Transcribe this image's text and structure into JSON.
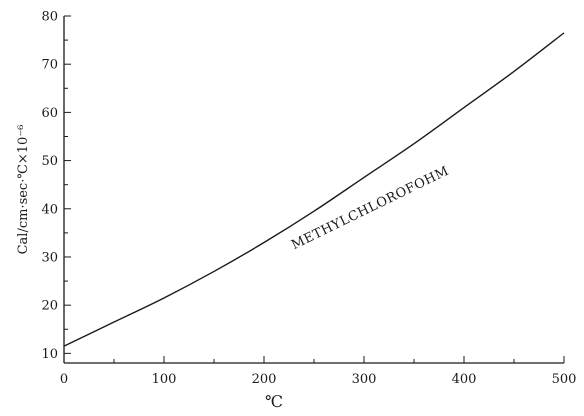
{
  "chart_data": {
    "type": "line",
    "title": "",
    "xlabel": "℃",
    "ylabel": "Cal/cm·sec·℃×10⁻⁶",
    "xlim": [
      0,
      500
    ],
    "ylim": [
      8,
      80
    ],
    "x_ticks": [
      0,
      100,
      200,
      300,
      400,
      500
    ],
    "y_ticks": [
      10,
      20,
      30,
      40,
      50,
      60,
      70,
      80
    ],
    "grid": false,
    "series": [
      {
        "name": "METHYLCHLOROFOHM",
        "x": [
          0,
          50,
          100,
          150,
          200,
          250,
          300,
          350,
          400,
          450,
          500
        ],
        "y": [
          11.5,
          16.5,
          21.5,
          27.0,
          33.0,
          39.5,
          46.5,
          53.5,
          61.0,
          68.5,
          76.5
        ]
      }
    ],
    "annotations": [
      {
        "text": "METHYLCHLOROFOHM",
        "x": 230,
        "y": 33
      }
    ]
  }
}
